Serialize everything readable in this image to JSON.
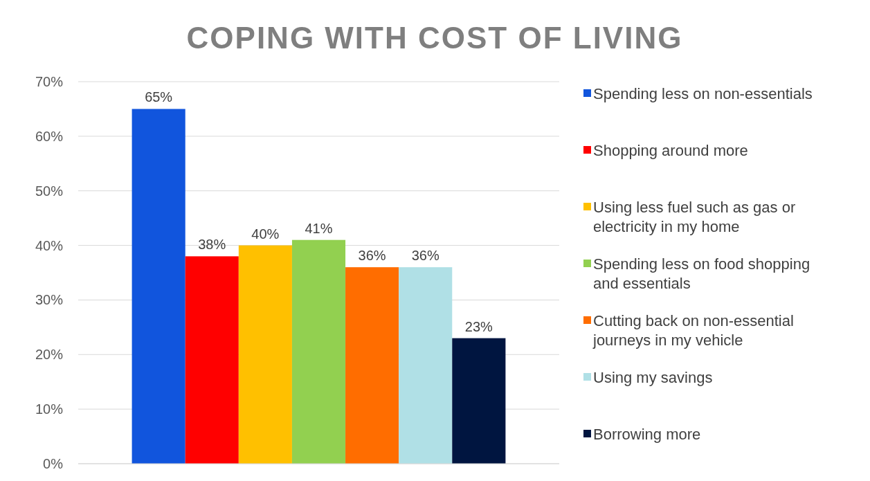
{
  "chart_data": {
    "type": "bar",
    "title": "COPING WITH COST OF LIVING",
    "categories": [
      null
    ],
    "series": [
      {
        "name": "Spending less on non-essentials",
        "color": "#1155dd",
        "values": [
          65
        ],
        "value_labels": [
          "65%"
        ]
      },
      {
        "name": "Shopping around more",
        "color": "#ff0000",
        "values": [
          38
        ],
        "value_labels": [
          "38%"
        ]
      },
      {
        "name": "Using less fuel such as gas or electricity in my home",
        "color": "#ffc000",
        "values": [
          40
        ],
        "value_labels": [
          "40%"
        ]
      },
      {
        "name": "Spending less on food shopping and essentials",
        "color": "#92d050",
        "values": [
          41
        ],
        "value_labels": [
          "41%"
        ]
      },
      {
        "name": "Cutting back on non-essential journeys in my vehicle",
        "color": "#ff6d00",
        "values": [
          36
        ],
        "value_labels": [
          "36%"
        ]
      },
      {
        "name": "Using my savings",
        "color": "#b0e0e6",
        "values": [
          36
        ],
        "value_labels": [
          "36%"
        ]
      },
      {
        "name": "Borrowing more",
        "color": "#001540",
        "values": [
          23
        ],
        "value_labels": [
          "23%"
        ]
      }
    ],
    "ylim": [
      0,
      70
    ],
    "yticks": [
      {
        "value": 0,
        "label": "0%"
      },
      {
        "value": 10,
        "label": "10%"
      },
      {
        "value": 20,
        "label": "20%"
      },
      {
        "value": 30,
        "label": "30%"
      },
      {
        "value": 40,
        "label": "40%"
      },
      {
        "value": 50,
        "label": "50%"
      },
      {
        "value": 60,
        "label": "60%"
      },
      {
        "value": 70,
        "label": "70%"
      }
    ],
    "grid": "y",
    "legend": "right"
  }
}
